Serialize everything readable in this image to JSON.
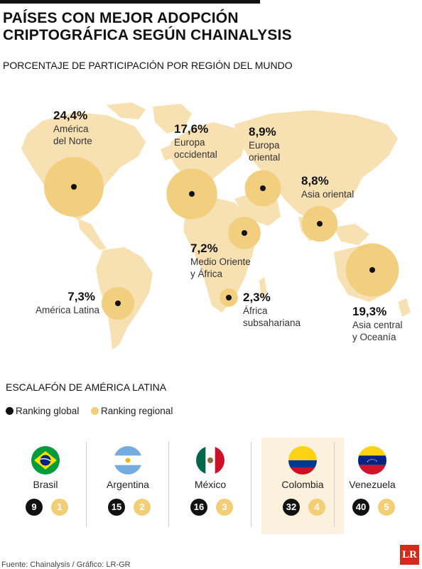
{
  "title_line1": "PAÍSES CON MEJOR ADOPCIÓN",
  "title_line2": "CRIPTOGRÁFICA SEGÚN CHAINALYSIS",
  "subtitle": "PORCENTAJE DE PARTICIPACIÓN POR REGIÓN DEL MUNDO",
  "colors": {
    "map_land": "#f7e1b3",
    "bubble": "#f1cf7f",
    "dot": "#111111",
    "regional_badge": "#f2cf76",
    "highlight": "#fbf1dc",
    "logo": "#d42a1d"
  },
  "chart_data": {
    "type": "bubble-map",
    "unit": "%",
    "regions": [
      {
        "id": "na",
        "pct_label": "24,4%",
        "value": 24.4,
        "name_line1": "América",
        "name_line2": "del Norte"
      },
      {
        "id": "we",
        "pct_label": "17,6%",
        "value": 17.6,
        "name_line1": "Europa",
        "name_line2": "occidental"
      },
      {
        "id": "ee",
        "pct_label": "8,9%",
        "value": 8.9,
        "name_line1": "Europa",
        "name_line2": "oriental"
      },
      {
        "id": "ea",
        "pct_label": "8,8%",
        "value": 8.8,
        "name_line1": "Asia oriental",
        "name_line2": ""
      },
      {
        "id": "me",
        "pct_label": "7,2%",
        "value": 7.2,
        "name_line1": "Medio Oriente",
        "name_line2": "y África"
      },
      {
        "id": "la",
        "pct_label": "7,3%",
        "value": 7.3,
        "name_line1": "América Latina",
        "name_line2": ""
      },
      {
        "id": "ss",
        "pct_label": "2,3%",
        "value": 2.3,
        "name_line1": "África",
        "name_line2": "subsahariana"
      },
      {
        "id": "ca",
        "pct_label": "19,3%",
        "value": 19.3,
        "name_line1": "Asia central",
        "name_line2": "y Oceanía"
      }
    ]
  },
  "ranking": {
    "section_title": "ESCALAFÓN DE AMÉRICA LATINA",
    "legend_global": "Ranking global",
    "legend_regional": "Ranking regional",
    "countries": [
      {
        "name": "Brasil",
        "global": "9",
        "regional": "1",
        "flag": "brazil-flag-icon"
      },
      {
        "name": "Argentina",
        "global": "15",
        "regional": "2",
        "flag": "argentina-flag-icon"
      },
      {
        "name": "México",
        "global": "16",
        "regional": "3",
        "flag": "mexico-flag-icon"
      },
      {
        "name": "Colombia",
        "global": "32",
        "regional": "4",
        "flag": "colombia-flag-icon",
        "highlighted": true
      },
      {
        "name": "Venezuela",
        "global": "40",
        "regional": "5",
        "flag": "venezuela-flag-icon"
      }
    ]
  },
  "footer": "Fuente: Chainalysis / Gráfico: LR-GR",
  "logo_text": "LR"
}
